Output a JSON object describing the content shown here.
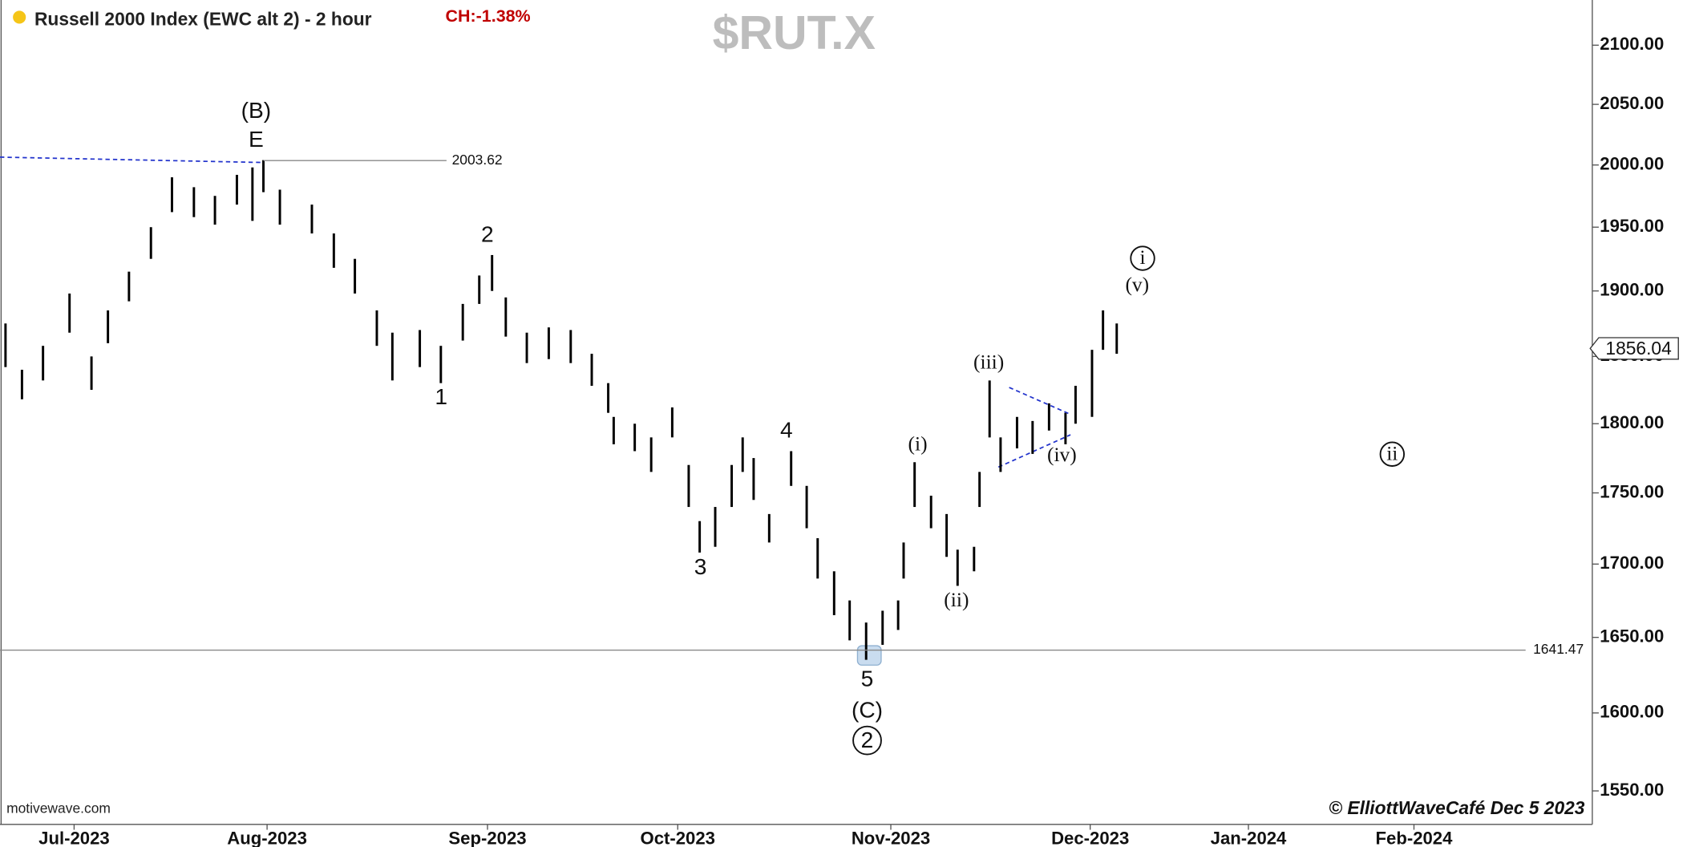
{
  "chart_data": {
    "type": "ohlc",
    "title": "Russell 2000 Index (EWC alt 2) - 2 hour",
    "change": "CH:-1.38%",
    "symbol": "$RUT.X",
    "source": "motivewave.com",
    "credit": "© ElliottWaveCafé Dec 5 2023",
    "log_scale": true,
    "xlim": [
      0,
      174.1
    ],
    "ylim": [
      1529,
      2139
    ],
    "xticks": [
      {
        "value": 8.1,
        "label": "Jul-2023"
      },
      {
        "value": 29.2,
        "label": "Aug-2023"
      },
      {
        "value": 53.3,
        "label": "Sep-2023"
      },
      {
        "value": 74.1,
        "label": "Oct-2023"
      },
      {
        "value": 97.4,
        "label": "Nov-2023"
      },
      {
        "value": 119.2,
        "label": "Dec-2023"
      },
      {
        "value": 136.5,
        "label": "Jan-2024"
      },
      {
        "value": 154.6,
        "label": "Feb-2024"
      }
    ],
    "yticks": [
      {
        "value": 2100,
        "label": "2100.00"
      },
      {
        "value": 2050,
        "label": "2050.00"
      },
      {
        "value": 2000,
        "label": "2000.00"
      },
      {
        "value": 1950,
        "label": "1950.00"
      },
      {
        "value": 1900,
        "label": "1900.00"
      },
      {
        "value": 1850,
        "label": "1850.00"
      },
      {
        "value": 1800,
        "label": "1800.00"
      },
      {
        "value": 1750,
        "label": "1750.00"
      },
      {
        "value": 1700,
        "label": "1700.00"
      },
      {
        "value": 1650,
        "label": "1650.00"
      },
      {
        "value": 1600,
        "label": "1600.00"
      },
      {
        "value": 1550,
        "label": "1550.00"
      }
    ],
    "color": "#000000",
    "x": [
      0.6,
      2.4,
      4.7,
      7.6,
      10.0,
      11.8,
      14.1,
      16.5,
      18.8,
      21.2,
      23.5,
      25.9,
      27.6,
      28.8,
      30.6,
      34.1,
      36.5,
      38.8,
      41.2,
      42.9,
      45.9,
      48.2,
      50.6,
      52.4,
      53.8,
      55.3,
      57.6,
      60.0,
      62.4,
      64.7,
      66.5,
      67.1,
      69.4,
      71.2,
      73.5,
      75.3,
      76.5,
      78.2,
      80.0,
      81.2,
      82.4,
      84.1,
      86.5,
      88.2,
      89.4,
      91.2,
      92.9,
      94.7,
      96.5,
      98.2,
      98.8,
      100.0,
      101.8,
      103.5,
      104.7,
      106.5,
      107.1,
      108.2,
      109.4,
      111.2,
      112.9,
      114.7,
      116.5,
      117.6,
      119.4,
      120.6,
      122.1
    ],
    "high": [
      1875,
      1840,
      1858,
      1898,
      1850,
      1885,
      1915,
      1950,
      1990,
      1982,
      1975,
      1992,
      1998,
      2004,
      1980,
      1968,
      1945,
      1925,
      1885,
      1868,
      1870,
      1858,
      1890,
      1912,
      1928,
      1895,
      1868,
      1872,
      1870,
      1852,
      1830,
      1805,
      1800,
      1790,
      1812,
      1770,
      1730,
      1740,
      1770,
      1790,
      1775,
      1735,
      1780,
      1755,
      1718,
      1695,
      1675,
      1660,
      1668,
      1675,
      1715,
      1772,
      1748,
      1735,
      1710,
      1712,
      1765,
      1832,
      1790,
      1805,
      1802,
      1815,
      1808,
      1828,
      1855,
      1885,
      1875
    ],
    "low": [
      1842,
      1818,
      1832,
      1868,
      1825,
      1860,
      1892,
      1925,
      1962,
      1958,
      1952,
      1968,
      1955,
      1978,
      1952,
      1945,
      1918,
      1898,
      1858,
      1832,
      1842,
      1830,
      1862,
      1890,
      1900,
      1865,
      1845,
      1848,
      1845,
      1828,
      1808,
      1785,
      1780,
      1765,
      1790,
      1740,
      1708,
      1712,
      1740,
      1765,
      1745,
      1715,
      1755,
      1725,
      1690,
      1665,
      1648,
      1635,
      1645,
      1655,
      1690,
      1740,
      1725,
      1705,
      1685,
      1695,
      1740,
      1790,
      1765,
      1782,
      1778,
      1795,
      1785,
      1800,
      1805,
      1855,
      1852
    ],
    "levels": [
      2003.62,
      1641.47
    ],
    "last_price": 1856.04,
    "annotations": [
      "(B)",
      "E",
      "1",
      "2",
      "3",
      "4",
      "5",
      "(C)",
      "2",
      "(i)",
      "(ii)",
      "(iii)",
      "(iv)",
      "(v)",
      "i",
      "ii"
    ]
  }
}
